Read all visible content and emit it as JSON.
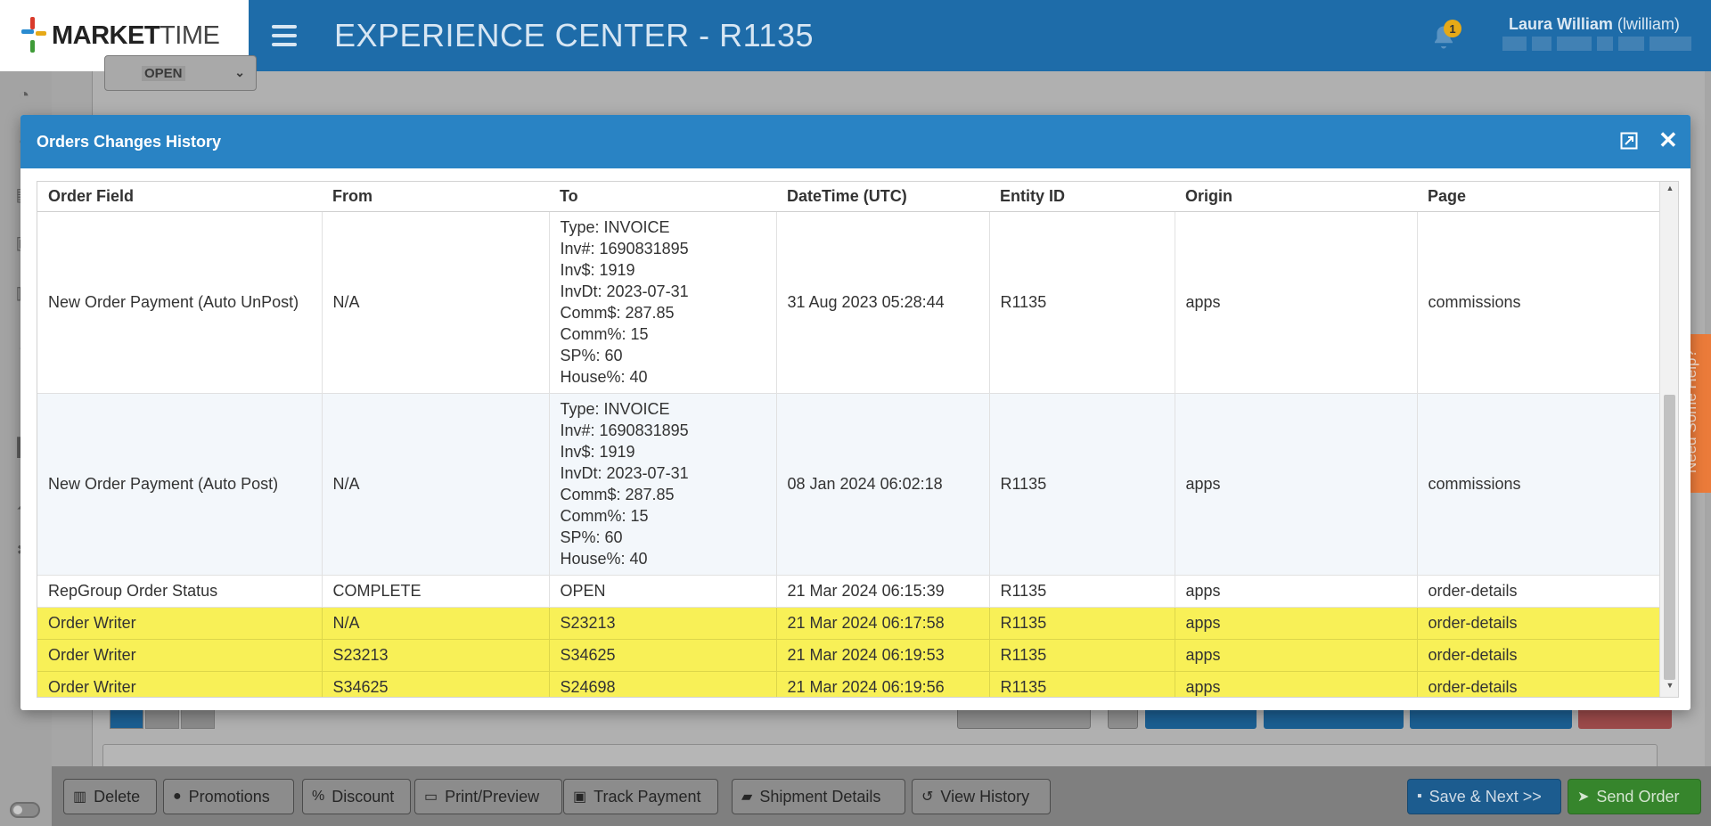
{
  "app": {
    "logo_main": "MARKET",
    "logo_rest": "TIME",
    "title": "EXPERIENCE CENTER - R1135",
    "notification_count": "1",
    "user_name": "Laura William",
    "user_handle": "(lwilliam)"
  },
  "background": {
    "order_status": "OPEN"
  },
  "icons": {
    "bell": "bell-icon",
    "menu": "hamburger-menu-icon",
    "expand": "expand-icon",
    "close": "close-icon"
  },
  "modal": {
    "title": "Orders Changes History",
    "close_glyph": "✕",
    "columns": [
      "Order Field",
      "From",
      "To",
      "DateTime (UTC)",
      "Entity ID",
      "Origin",
      "Page"
    ],
    "rows": [
      {
        "field": "New Order Payment (Auto UnPost)",
        "from": "N/A",
        "to": [
          "Type: INVOICE",
          "Inv#: 1690831895",
          "Inv$: 1919",
          "InvDt: 2023-07-31",
          "Comm$: 287.85",
          "Comm%: 15",
          "SP%: 60",
          "House%: 40"
        ],
        "datetime": "31 Aug 2023 05:28:44",
        "entity": "R1135",
        "origin": "apps",
        "page": "commissions",
        "highlighted": false
      },
      {
        "field": "New Order Payment (Auto Post)",
        "from": "N/A",
        "to": [
          "Type: INVOICE",
          "Inv#: 1690831895",
          "Inv$: 1919",
          "InvDt: 2023-07-31",
          "Comm$: 287.85",
          "Comm%: 15",
          "SP%: 60",
          "House%: 40"
        ],
        "datetime": "08 Jan 2024 06:02:18",
        "entity": "R1135",
        "origin": "apps",
        "page": "commissions",
        "highlighted": false
      },
      {
        "field": "RepGroup Order Status",
        "from": "COMPLETE",
        "to": [
          "OPEN"
        ],
        "datetime": "21 Mar 2024 06:15:39",
        "entity": "R1135",
        "origin": "apps",
        "page": "order-details",
        "highlighted": false
      },
      {
        "field": "Order Writer",
        "from": "N/A",
        "to": [
          "S23213"
        ],
        "datetime": "21 Mar 2024 06:17:58",
        "entity": "R1135",
        "origin": "apps",
        "page": "order-details",
        "highlighted": true
      },
      {
        "field": "Order Writer",
        "from": "S23213",
        "to": [
          "S34625"
        ],
        "datetime": "21 Mar 2024 06:19:53",
        "entity": "R1135",
        "origin": "apps",
        "page": "order-details",
        "highlighted": true
      },
      {
        "field": "Order Writer",
        "from": "S34625",
        "to": [
          "S24698"
        ],
        "datetime": "21 Mar 2024 06:19:56",
        "entity": "R1135",
        "origin": "apps",
        "page": "order-details",
        "highlighted": true
      }
    ]
  },
  "action_bar": {
    "delete": "Delete",
    "promotions": "Promotions",
    "discount": "Discount",
    "print_preview": "Print/Preview",
    "track_payment": "Track Payment",
    "shipment_details": "Shipment Details",
    "view_history": "View History",
    "save_next": "Save & Next >>",
    "send_order": "Send Order"
  },
  "help_tab": "Need Some Help?",
  "colors": {
    "header_blue": "#1e6ca9",
    "modal_header": "#2983c4",
    "highlight_yellow": "#f8f057",
    "help_orange": "#eb7b3a"
  }
}
